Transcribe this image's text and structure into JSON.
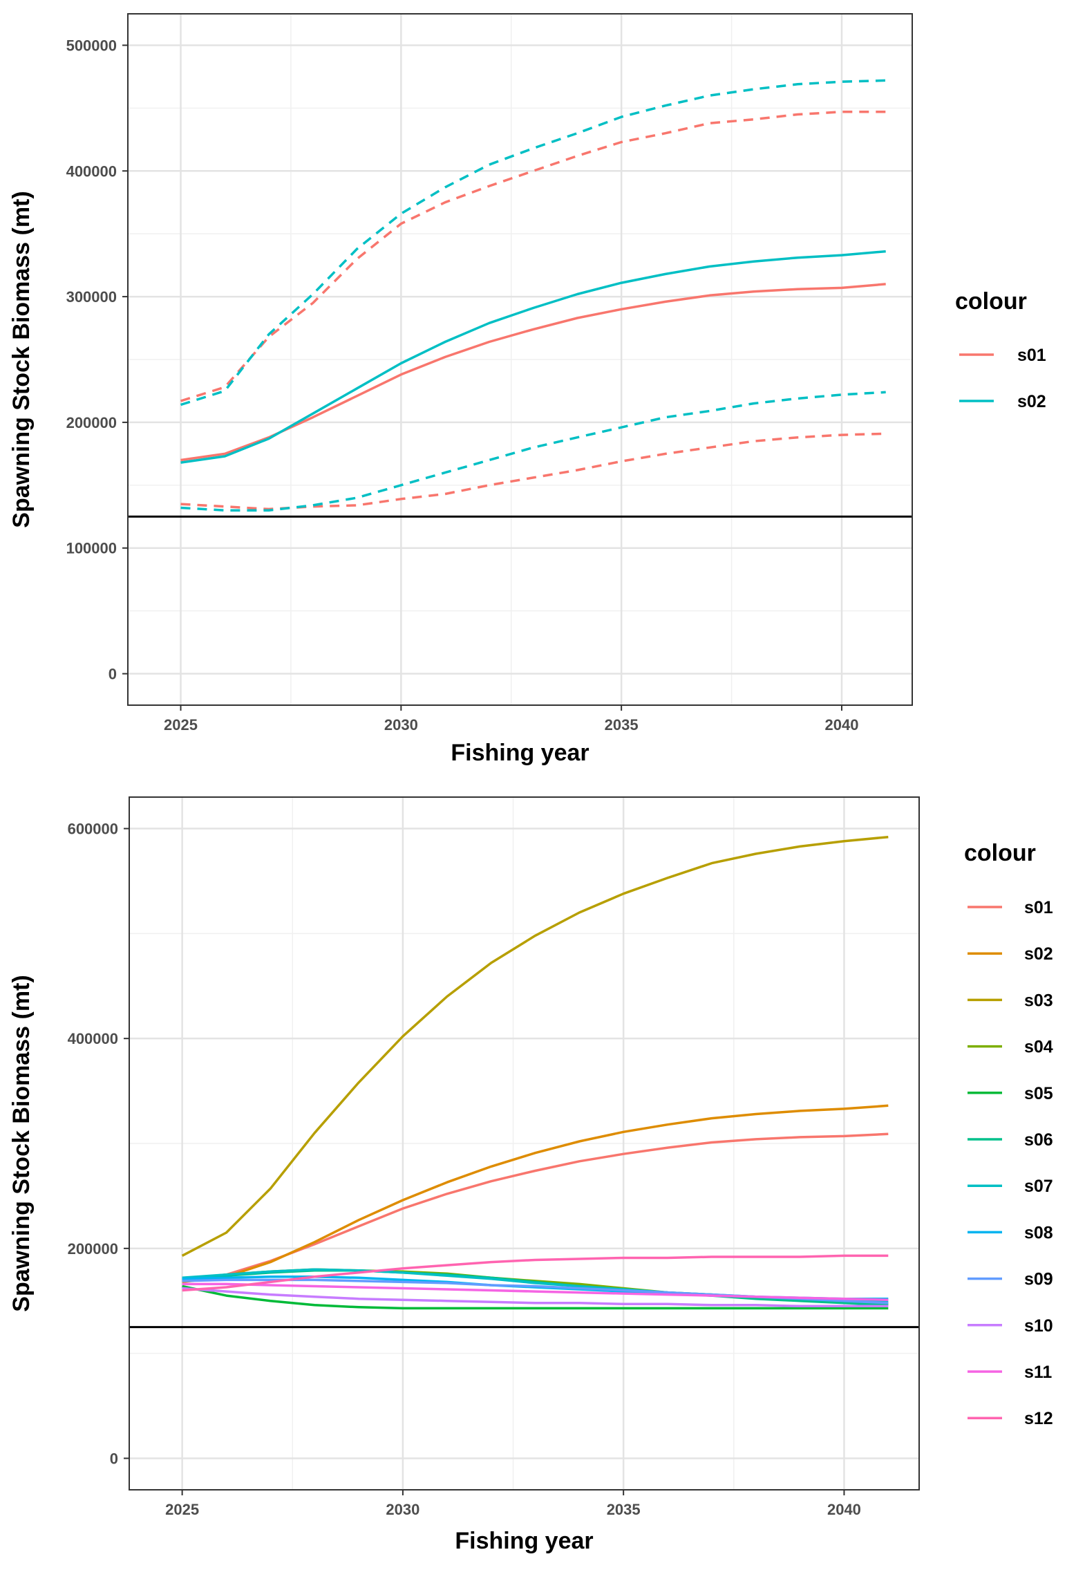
{
  "chart_data": [
    {
      "type": "line",
      "xlabel": "Fishing year",
      "ylabel": "Spawning Stock Biomass (mt)",
      "xlim": [
        2023.8,
        2041.6
      ],
      "ylim": [
        -25000,
        525000
      ],
      "x_ticks": [
        2025,
        2030,
        2035,
        2040
      ],
      "y_ticks": [
        0,
        100000,
        200000,
        300000,
        400000,
        500000
      ],
      "x_tick_labels": [
        "2025",
        "2030",
        "2035",
        "2040"
      ],
      "y_tick_labels": [
        "0",
        "100000",
        "200000",
        "300000",
        "400000",
        "500000"
      ],
      "reference_line": 125000,
      "legend_title": "colour",
      "x": [
        2025,
        2026,
        2027,
        2028,
        2029,
        2030,
        2031,
        2032,
        2033,
        2034,
        2035,
        2036,
        2037,
        2038,
        2039,
        2040,
        2041
      ],
      "series": [
        {
          "name": "s01",
          "color": "#F8766D",
          "legend": true,
          "dash": false,
          "values": [
            170000,
            175000,
            188000,
            204000,
            221000,
            238000,
            252000,
            264000,
            274000,
            283000,
            290000,
            296000,
            301000,
            304000,
            306000,
            307000,
            310000
          ]
        },
        {
          "name": "s02",
          "color": "#00BFC4",
          "legend": true,
          "dash": false,
          "values": [
            168000,
            173000,
            187000,
            207000,
            227000,
            247000,
            264000,
            279000,
            291000,
            302000,
            311000,
            318000,
            324000,
            328000,
            331000,
            333000,
            336000
          ]
        },
        {
          "name": "s01 upper",
          "color": "#F8766D",
          "legend": false,
          "dash": true,
          "values": [
            217000,
            228000,
            268000,
            295000,
            330000,
            358000,
            375000,
            388000,
            400000,
            412000,
            423000,
            430000,
            438000,
            441000,
            445000,
            447000,
            447000
          ]
        },
        {
          "name": "s02 upper",
          "color": "#00BFC4",
          "legend": false,
          "dash": true,
          "values": [
            214000,
            225000,
            270000,
            302000,
            338000,
            366000,
            387000,
            405000,
            418000,
            430000,
            443000,
            452000,
            460000,
            465000,
            469000,
            471000,
            472000
          ]
        },
        {
          "name": "s01 lower",
          "color": "#F8766D",
          "legend": false,
          "dash": true,
          "values": [
            135000,
            133000,
            131000,
            133000,
            134000,
            139000,
            143000,
            150000,
            156000,
            162000,
            169000,
            175000,
            180000,
            185000,
            188000,
            190000,
            191000
          ]
        },
        {
          "name": "s02 lower",
          "color": "#00BFC4",
          "legend": false,
          "dash": true,
          "values": [
            132000,
            130000,
            130000,
            134000,
            140000,
            150000,
            160000,
            170000,
            180000,
            188000,
            196000,
            204000,
            209000,
            215000,
            219000,
            222000,
            224000
          ]
        }
      ]
    },
    {
      "type": "line",
      "xlabel": "Fishing year",
      "ylabel": "Spawning Stock Biomass (mt)",
      "xlim": [
        2023.8,
        2041.7
      ],
      "ylim": [
        -30000,
        630000
      ],
      "x_ticks": [
        2025,
        2030,
        2035,
        2040
      ],
      "y_ticks": [
        0,
        200000,
        400000,
        600000
      ],
      "x_tick_labels": [
        "2025",
        "2030",
        "2035",
        "2040"
      ],
      "y_tick_labels": [
        "0",
        "200000",
        "400000",
        "600000"
      ],
      "reference_line": 125000,
      "legend_title": "colour",
      "x": [
        2025,
        2026,
        2027,
        2028,
        2029,
        2030,
        2031,
        2032,
        2033,
        2034,
        2035,
        2036,
        2037,
        2038,
        2039,
        2040,
        2041
      ],
      "series": [
        {
          "name": "s01",
          "color": "#F8766D",
          "legend": true,
          "dash": false,
          "values": [
            170000,
            175000,
            188000,
            204000,
            221000,
            238000,
            252000,
            264000,
            274000,
            283000,
            290000,
            296000,
            301000,
            304000,
            306000,
            307000,
            309000
          ]
        },
        {
          "name": "s02",
          "color": "#DE8C00",
          "legend": true,
          "dash": false,
          "values": [
            168000,
            173000,
            187000,
            206000,
            227000,
            246000,
            263000,
            278000,
            291000,
            302000,
            311000,
            318000,
            324000,
            328000,
            331000,
            333000,
            336000
          ]
        },
        {
          "name": "s03",
          "color": "#B79F00",
          "legend": true,
          "dash": false,
          "values": [
            193000,
            215000,
            257000,
            310000,
            358000,
            402000,
            440000,
            472000,
            498000,
            520000,
            538000,
            553000,
            567000,
            576000,
            583000,
            588000,
            592000
          ]
        },
        {
          "name": "s04",
          "color": "#7CAE00",
          "legend": true,
          "dash": false,
          "values": [
            171000,
            175000,
            178000,
            180000,
            179000,
            178000,
            176000,
            172000,
            169000,
            166000,
            162000,
            158000,
            156000,
            153000,
            151000,
            149000,
            147000
          ]
        },
        {
          "name": "s05",
          "color": "#00BA38",
          "legend": true,
          "dash": false,
          "values": [
            164000,
            155000,
            150000,
            146000,
            144000,
            143000,
            143000,
            143000,
            143000,
            143000,
            143000,
            143000,
            143000,
            143000,
            143000,
            143000,
            143000
          ]
        },
        {
          "name": "s06",
          "color": "#00C08B",
          "legend": true,
          "dash": false,
          "values": [
            170000,
            174000,
            177000,
            179000,
            179000,
            177000,
            175000,
            172000,
            168000,
            164000,
            161000,
            158000,
            155000,
            152000,
            150000,
            148000,
            146000
          ]
        },
        {
          "name": "s07",
          "color": "#00BFC4",
          "legend": true,
          "dash": false,
          "values": [
            172000,
            175000,
            178000,
            180000,
            179000,
            177000,
            174000,
            171000,
            167000,
            164000,
            161000,
            158000,
            156000,
            154000,
            152000,
            151000,
            149000
          ]
        },
        {
          "name": "s08",
          "color": "#00B4F0",
          "legend": true,
          "dash": false,
          "values": [
            171000,
            172000,
            173000,
            173000,
            172000,
            170000,
            168000,
            165000,
            163000,
            161000,
            159000,
            157000,
            155000,
            154000,
            153000,
            152000,
            152000
          ]
        },
        {
          "name": "s09",
          "color": "#619CFF",
          "legend": true,
          "dash": false,
          "values": [
            169000,
            170000,
            170000,
            170000,
            169000,
            168000,
            167000,
            165000,
            164000,
            162000,
            160000,
            158000,
            156000,
            154000,
            152000,
            150000,
            148000
          ]
        },
        {
          "name": "s10",
          "color": "#C77CFF",
          "legend": true,
          "dash": false,
          "values": [
            162000,
            159000,
            156000,
            154000,
            152000,
            151000,
            150000,
            149000,
            148000,
            148000,
            147000,
            147000,
            146000,
            146000,
            145000,
            145000,
            145000
          ]
        },
        {
          "name": "s11",
          "color": "#F564E3",
          "legend": true,
          "dash": false,
          "values": [
            166000,
            166000,
            165000,
            164000,
            163000,
            162000,
            161000,
            160000,
            159000,
            158000,
            157000,
            156000,
            155000,
            154000,
            153000,
            152000,
            151000
          ]
        },
        {
          "name": "s12",
          "color": "#FF64B0",
          "legend": true,
          "dash": false,
          "values": [
            160000,
            163000,
            168000,
            173000,
            177000,
            181000,
            184000,
            187000,
            189000,
            190000,
            191000,
            191000,
            192000,
            192000,
            192000,
            193000,
            193000
          ]
        }
      ]
    }
  ]
}
